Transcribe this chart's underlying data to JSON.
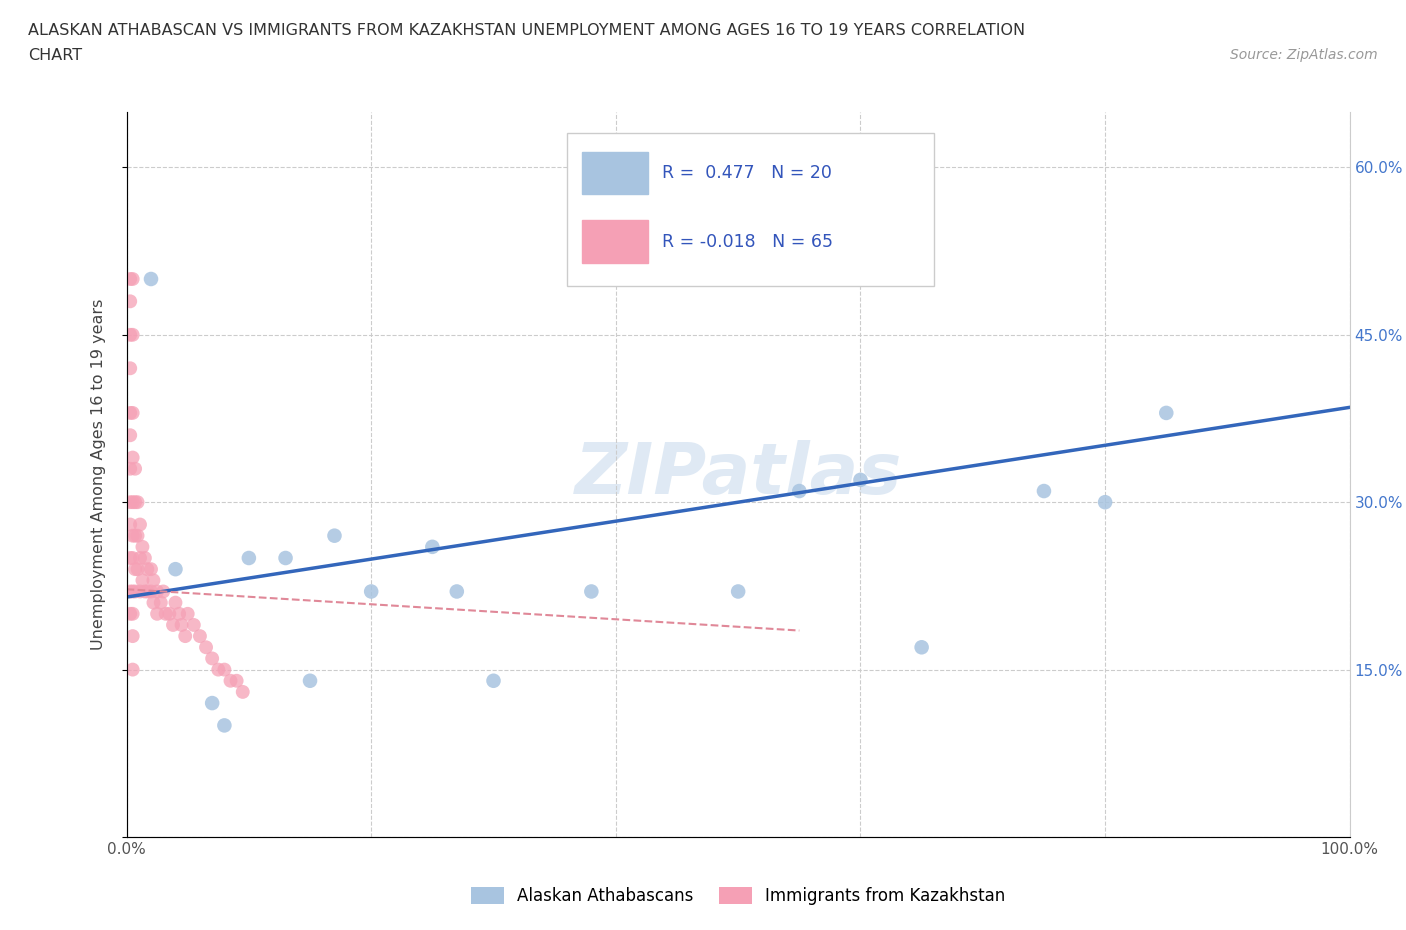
{
  "title_line1": "ALASKAN ATHABASCAN VS IMMIGRANTS FROM KAZAKHSTAN UNEMPLOYMENT AMONG AGES 16 TO 19 YEARS CORRELATION",
  "title_line2": "CHART",
  "source_text": "Source: ZipAtlas.com",
  "ylabel": "Unemployment Among Ages 16 to 19 years",
  "xlim": [
    0.0,
    1.0
  ],
  "ylim": [
    0.0,
    0.65
  ],
  "x_tick_positions": [
    0.0,
    0.2,
    0.4,
    0.6,
    0.8,
    1.0
  ],
  "x_tick_labels": [
    "0.0%",
    "",
    "",
    "",
    "",
    "100.0%"
  ],
  "y_tick_positions": [
    0.0,
    0.15,
    0.3,
    0.45,
    0.6
  ],
  "y_tick_labels": [
    "",
    "15.0%",
    "30.0%",
    "45.0%",
    "60.0%"
  ],
  "R_blue": 0.477,
  "N_blue": 20,
  "R_pink": -0.018,
  "N_pink": 65,
  "blue_color": "#a8c4e0",
  "pink_color": "#f5a0b5",
  "blue_line_color": "#3366bb",
  "pink_line_color": "#e08898",
  "legend_label_blue": "Alaskan Athabascans",
  "legend_label_pink": "Immigrants from Kazakhstan",
  "blue_scatter_x": [
    0.02,
    0.04,
    0.07,
    0.08,
    0.1,
    0.13,
    0.15,
    0.17,
    0.2,
    0.25,
    0.27,
    0.3,
    0.38,
    0.5,
    0.55,
    0.6,
    0.65,
    0.75,
    0.8,
    0.85
  ],
  "blue_scatter_y": [
    0.5,
    0.24,
    0.12,
    0.1,
    0.25,
    0.25,
    0.14,
    0.27,
    0.22,
    0.26,
    0.22,
    0.14,
    0.22,
    0.22,
    0.31,
    0.32,
    0.17,
    0.31,
    0.3,
    0.38
  ],
  "pink_scatter_x": [
    0.003,
    0.003,
    0.003,
    0.003,
    0.003,
    0.003,
    0.003,
    0.003,
    0.003,
    0.003,
    0.003,
    0.003,
    0.005,
    0.005,
    0.005,
    0.005,
    0.005,
    0.005,
    0.005,
    0.005,
    0.005,
    0.005,
    0.005,
    0.007,
    0.007,
    0.007,
    0.007,
    0.007,
    0.009,
    0.009,
    0.009,
    0.011,
    0.011,
    0.011,
    0.013,
    0.013,
    0.015,
    0.015,
    0.017,
    0.017,
    0.02,
    0.02,
    0.022,
    0.022,
    0.025,
    0.025,
    0.028,
    0.03,
    0.032,
    0.035,
    0.038,
    0.04,
    0.043,
    0.045,
    0.048,
    0.05,
    0.055,
    0.06,
    0.065,
    0.07,
    0.075,
    0.08,
    0.085,
    0.09,
    0.095
  ],
  "pink_scatter_y": [
    0.5,
    0.48,
    0.45,
    0.42,
    0.38,
    0.36,
    0.33,
    0.3,
    0.28,
    0.25,
    0.22,
    0.2,
    0.5,
    0.45,
    0.38,
    0.34,
    0.3,
    0.27,
    0.25,
    0.22,
    0.2,
    0.18,
    0.15,
    0.33,
    0.3,
    0.27,
    0.24,
    0.22,
    0.3,
    0.27,
    0.24,
    0.28,
    0.25,
    0.22,
    0.26,
    0.23,
    0.25,
    0.22,
    0.24,
    0.22,
    0.24,
    0.22,
    0.23,
    0.21,
    0.22,
    0.2,
    0.21,
    0.22,
    0.2,
    0.2,
    0.19,
    0.21,
    0.2,
    0.19,
    0.18,
    0.2,
    0.19,
    0.18,
    0.17,
    0.16,
    0.15,
    0.15,
    0.14,
    0.14,
    0.13
  ],
  "blue_line_x0": 0.0,
  "blue_line_y0": 0.215,
  "blue_line_x1": 1.0,
  "blue_line_y1": 0.385,
  "pink_line_x0": 0.0,
  "pink_line_y0": 0.222,
  "pink_line_x1": 0.55,
  "pink_line_y1": 0.185
}
